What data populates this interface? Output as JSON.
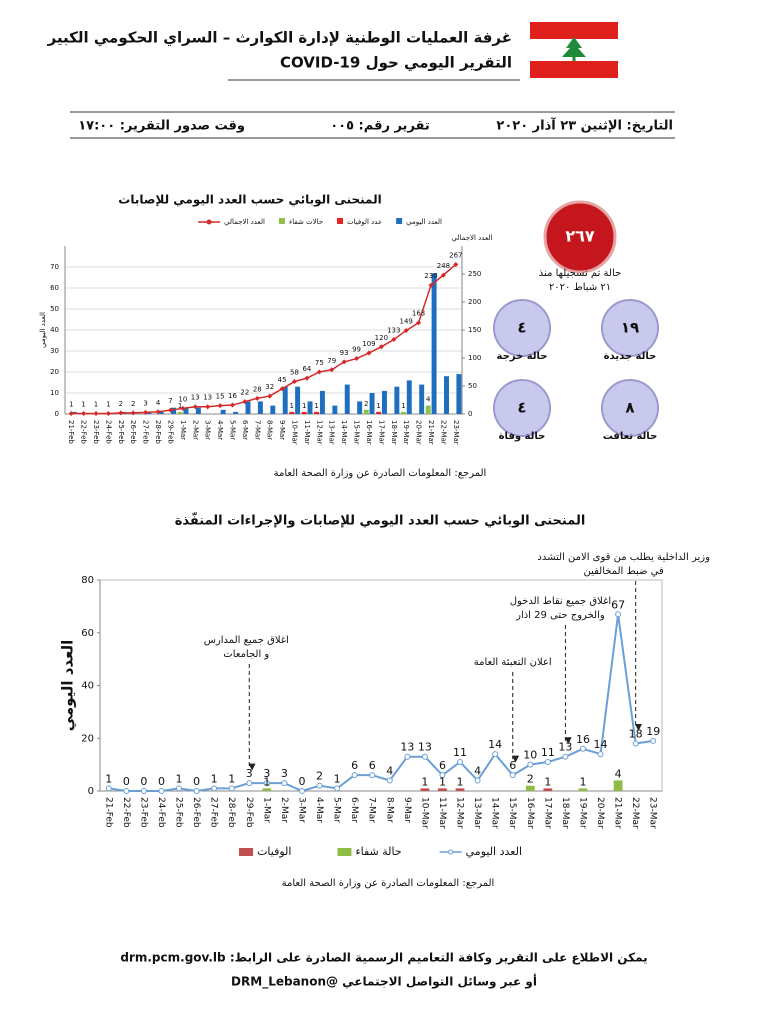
{
  "header": {
    "title": "غرفة العمليات الوطنية لإدارة الكوارث – السراي الحكومي الكبير",
    "subtitle": "التقرير اليومي حول COVID-19"
  },
  "report_info": {
    "date": "التاريخ: الإثنين ٢٣ آذار ٢٠٢٠",
    "number": "تقرير رقم: ٠٠٥",
    "time": "وقت صدور التقرير: ١٧:٠٠"
  },
  "stats": {
    "total": {
      "value": "٢٦٧",
      "label": "حالة تم تسجيلها منذ",
      "since": "٢١ شباط ٢٠٢٠"
    },
    "items": [
      {
        "value": "٤",
        "label": "حالة خرجة"
      },
      {
        "value": "١٩",
        "label": "حالة جديدة"
      },
      {
        "value": "٤",
        "label": "حالة وفاة"
      },
      {
        "value": "٨",
        "label": "حالة تعافت"
      }
    ]
  },
  "chart_data": [
    {
      "type": "bar",
      "title": "المنحنى الوبائي حسب العدد اليومي للإصابات",
      "y_label": "العدد اليومي",
      "y2_label": "العدد الاجمالي",
      "categories": [
        "21-Feb",
        "22-Feb",
        "23-Feb",
        "24-Feb",
        "25-Feb",
        "26-Feb",
        "27-Feb",
        "28-Feb",
        "29-Feb",
        "1-Mar",
        "2-Mar",
        "3-Mar",
        "4-Mar",
        "5-Mar",
        "6-Mar",
        "7-Mar",
        "8-Mar",
        "9-Mar",
        "10-Mar",
        "11-Mar",
        "12-Mar",
        "13-Mar",
        "14-Mar",
        "15-Mar",
        "16-Mar",
        "17-Mar",
        "18-Mar",
        "19-Mar",
        "20-Mar",
        "21-Mar",
        "22-Mar",
        "23-Mar"
      ],
      "series": [
        {
          "name": "العدد اليومي",
          "type": "bar",
          "color": "#1f6fc0",
          "labels": false,
          "values": [
            1,
            0,
            0,
            0,
            1,
            0,
            1,
            1,
            3,
            3,
            3,
            0,
            2,
            1,
            6,
            6,
            4,
            13,
            13,
            6,
            11,
            4,
            14,
            6,
            10,
            11,
            13,
            16,
            14,
            67,
            18,
            19
          ]
        },
        {
          "name": "عدد الوفيات",
          "type": "bar",
          "color": "#e32222",
          "labels": true,
          "values": [
            null,
            null,
            null,
            null,
            null,
            null,
            null,
            null,
            null,
            null,
            null,
            null,
            null,
            null,
            null,
            null,
            null,
            null,
            1,
            1,
            1,
            null,
            null,
            null,
            null,
            1,
            null,
            null,
            null,
            null,
            null,
            null
          ]
        },
        {
          "name": "حالات شفاء",
          "type": "bar",
          "color": "#8fc04a",
          "labels": true,
          "values": [
            null,
            null,
            null,
            null,
            null,
            null,
            null,
            null,
            null,
            1,
            null,
            null,
            null,
            null,
            null,
            null,
            null,
            null,
            null,
            null,
            null,
            null,
            null,
            null,
            2,
            null,
            null,
            1,
            null,
            4,
            null,
            null
          ]
        },
        {
          "name": "العدد الاجمالي",
          "type": "line",
          "axis": "y2",
          "color": "#d42a2a",
          "marker": "diamond",
          "labels": true,
          "values": [
            1,
            1,
            1,
            1,
            2,
            2,
            3,
            4,
            7,
            10,
            13,
            13,
            15,
            16,
            22,
            28,
            32,
            45,
            58,
            64,
            75,
            79,
            93,
            99,
            109,
            120,
            133,
            149,
            163,
            230,
            248,
            267
          ]
        }
      ],
      "ylim": [
        0,
        80
      ],
      "yticks": [
        0,
        10,
        20,
        30,
        40,
        50,
        60,
        70
      ],
      "y2lim": [
        0,
        300
      ],
      "y2ticks": [
        0,
        50,
        100,
        150,
        200,
        250
      ],
      "grid": true,
      "legend": "top"
    },
    {
      "type": "line",
      "title": "المنحنى الوبائي حسب العدد اليومي للإصابات والإجراءات المنفّذة",
      "y_label": "العدد اليومي",
      "categories": [
        "21-Feb",
        "22-Feb",
        "23-Feb",
        "24-Feb",
        "25-Feb",
        "26-Feb",
        "27-Feb",
        "28-Feb",
        "29-Feb",
        "1-Mar",
        "2-Mar",
        "3-Mar",
        "4-Mar",
        "5-Mar",
        "6-Mar",
        "7-Mar",
        "8-Mar",
        "9-Mar",
        "10-Mar",
        "11-Mar",
        "12-Mar",
        "13-Mar",
        "14-Mar",
        "15-Mar",
        "16-Mar",
        "17-Mar",
        "18-Mar",
        "19-Mar",
        "20-Mar",
        "21-Mar",
        "22-Mar",
        "23-Mar"
      ],
      "series": [
        {
          "name": "العدد اليومي",
          "type": "line",
          "color": "#6a9fd8",
          "marker": "circle",
          "labels": true,
          "values": [
            1,
            0,
            0,
            0,
            1,
            0,
            1,
            1,
            3,
            3,
            3,
            0,
            2,
            1,
            6,
            6,
            4,
            13,
            13,
            6,
            11,
            4,
            14,
            6,
            10,
            11,
            13,
            16,
            14,
            67,
            18,
            19
          ]
        },
        {
          "name": "حالة شفاء",
          "type": "bar",
          "color": "#8fbc45",
          "labels": true,
          "values": [
            null,
            null,
            null,
            null,
            null,
            null,
            null,
            null,
            null,
            1,
            null,
            null,
            null,
            null,
            null,
            null,
            null,
            null,
            null,
            null,
            null,
            null,
            null,
            null,
            2,
            null,
            null,
            1,
            null,
            4,
            null,
            null
          ]
        },
        {
          "name": "الوفيات",
          "type": "bar",
          "color": "#c0504d",
          "labels": true,
          "values": [
            null,
            null,
            null,
            null,
            null,
            null,
            null,
            null,
            null,
            null,
            null,
            null,
            null,
            null,
            null,
            null,
            null,
            null,
            1,
            1,
            1,
            null,
            null,
            null,
            null,
            1,
            null,
            null,
            null,
            null,
            null,
            null
          ]
        }
      ],
      "ylim": [
        0,
        80
      ],
      "yticks": [
        0,
        20,
        40,
        60,
        80
      ],
      "grid": false,
      "legend": "bottom",
      "annotations": [
        {
          "at": "29-Feb",
          "text": [
            "اغلاق جميع المدارس",
            "و الجامعات"
          ]
        },
        {
          "at": "15-Mar",
          "text": [
            "اعلان التعبئة العامة"
          ]
        },
        {
          "at": "18-Mar",
          "text": [
            "اغلاق جميع نقاط الدخول",
            "والخروج حتى 29 اذار"
          ]
        },
        {
          "at": "22-Mar",
          "text": [
            "وزير الداخلية يطلب من قوى الامن التشدد",
            "في ضبط المخالفين"
          ]
        }
      ]
    }
  ],
  "sources": [
    "المرجع: المعلومات الصادرة عن وزارة الصحة العامة",
    "المرجع: المعلومات الصادرة عن وزارة الصحة العامة"
  ],
  "footer": {
    "line1": "يمكن الاطلاع على التقرير وكافة التعاميم الرسمية الصادرة على الرابط: drm.pcm.gov.lb",
    "line2": "أو عبر وسائل التواصل الاجتماعي @DRM_Lebanon"
  }
}
